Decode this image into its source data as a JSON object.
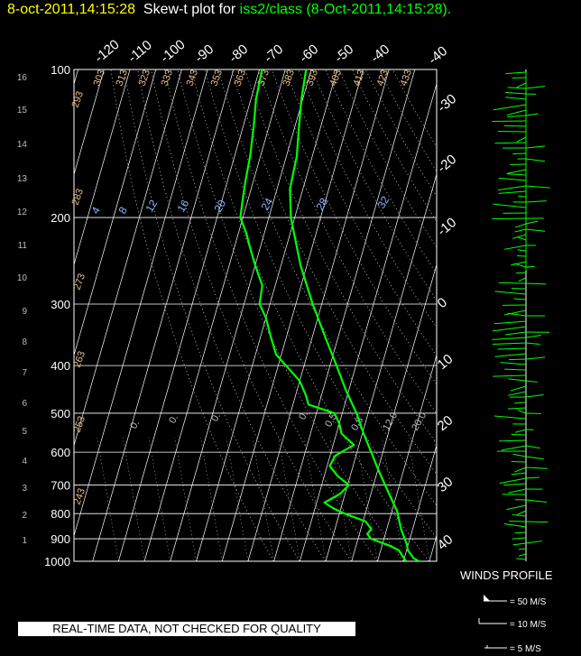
{
  "header": {
    "date_time": "8-oct-2011,14:15:28",
    "plot_label": "Skew-t plot for",
    "source": "iss2/class",
    "stamp": "(8-Oct-2011,14:15:28)."
  },
  "quality_note": "REAL-TIME DATA, NOT CHECKED FOR QUALITY",
  "winds": {
    "title": "WINDS PROFILE",
    "legend": [
      "= 50 M/S",
      "= 10 M/S",
      "= 5 M/S"
    ]
  },
  "colors": {
    "background": "#000000",
    "profile": "#00ff00",
    "grid": "#ffffff",
    "mixing_ratio": "#8ab4ff",
    "theta": "#e8c08a"
  },
  "chart_data": {
    "type": "line",
    "pressure_ticks": [
      100,
      200,
      300,
      400,
      500,
      600,
      700,
      800,
      900,
      1000
    ],
    "altitude_ticks": [
      1,
      2,
      3,
      4,
      5,
      6,
      7,
      8,
      9,
      10,
      11,
      12,
      13,
      14,
      15,
      16
    ],
    "temperature_ticks_top": [
      -120,
      -110,
      -100,
      -90,
      -80,
      -70,
      -60,
      -50,
      -40
    ],
    "temperature_ticks_right": [
      -30,
      -20,
      -10,
      0,
      10,
      20,
      30,
      40
    ],
    "theta_labels": [
      "243",
      "253",
      "263",
      "273",
      "283",
      "293",
      "303",
      "313",
      "323",
      "333",
      "343",
      "353",
      "363",
      "373",
      "383",
      "393",
      "403",
      "413",
      "423",
      "433"
    ],
    "mixing_ratio_labels": [
      "4",
      "8",
      "12",
      "16",
      "20",
      "24",
      "28",
      "32"
    ],
    "lower_labels": [
      "0.",
      "0.",
      "0.",
      "0.",
      "0.5",
      "0.8",
      "12.0",
      "20.0"
    ],
    "temperature_profile": [
      {
        "p": 1000,
        "t": 26.0
      },
      {
        "p": 985,
        "t": 23.5
      },
      {
        "p": 950,
        "t": 20.5
      },
      {
        "p": 925,
        "t": 19.5
      },
      {
        "p": 900,
        "t": 18.0
      },
      {
        "p": 860,
        "t": 15.5
      },
      {
        "p": 820,
        "t": 13.5
      },
      {
        "p": 790,
        "t": 12.0
      },
      {
        "p": 760,
        "t": 9.5
      },
      {
        "p": 700,
        "t": 4.5
      },
      {
        "p": 650,
        "t": 0.0
      },
      {
        "p": 600,
        "t": -4.5
      },
      {
        "p": 550,
        "t": -9.5
      },
      {
        "p": 500,
        "t": -14.5
      },
      {
        "p": 450,
        "t": -21.0
      },
      {
        "p": 400,
        "t": -27.5
      },
      {
        "p": 350,
        "t": -35.0
      },
      {
        "p": 300,
        "t": -43.5
      },
      {
        "p": 250,
        "t": -52.5
      },
      {
        "p": 200,
        "t": -61.5
      },
      {
        "p": 175,
        "t": -65.0
      },
      {
        "p": 150,
        "t": -66.0
      },
      {
        "p": 130,
        "t": -68.5
      },
      {
        "p": 115,
        "t": -70.5
      },
      {
        "p": 100,
        "t": -72.0
      }
    ],
    "dewpoint_profile": [
      {
        "p": 1000,
        "t": 21.0
      },
      {
        "p": 975,
        "t": 19.0
      },
      {
        "p": 950,
        "t": 17.0
      },
      {
        "p": 930,
        "t": 13.0
      },
      {
        "p": 900,
        "t": 5.0
      },
      {
        "p": 880,
        "t": 3.0
      },
      {
        "p": 860,
        "t": 4.0
      },
      {
        "p": 830,
        "t": 1.0
      },
      {
        "p": 800,
        "t": -8.0
      },
      {
        "p": 780,
        "t": -13.0
      },
      {
        "p": 760,
        "t": -17.0
      },
      {
        "p": 730,
        "t": -12.0
      },
      {
        "p": 700,
        "t": -9.5
      },
      {
        "p": 670,
        "t": -15.0
      },
      {
        "p": 640,
        "t": -19.0
      },
      {
        "p": 610,
        "t": -18.0
      },
      {
        "p": 580,
        "t": -12.0
      },
      {
        "p": 550,
        "t": -18.0
      },
      {
        "p": 525,
        "t": -20.0
      },
      {
        "p": 500,
        "t": -23.0
      },
      {
        "p": 480,
        "t": -34.0
      },
      {
        "p": 460,
        "t": -36.0
      },
      {
        "p": 430,
        "t": -40.0
      },
      {
        "p": 400,
        "t": -47.0
      },
      {
        "p": 380,
        "t": -52.0
      },
      {
        "p": 350,
        "t": -56.0
      },
      {
        "p": 320,
        "t": -60.0
      },
      {
        "p": 300,
        "t": -64.0
      },
      {
        "p": 275,
        "t": -65.0
      },
      {
        "p": 250,
        "t": -70.0
      },
      {
        "p": 230,
        "t": -74.0
      },
      {
        "p": 215,
        "t": -77.0
      },
      {
        "p": 200,
        "t": -81.0
      },
      {
        "p": 185,
        "t": -82.0
      },
      {
        "p": 170,
        "t": -83.0
      },
      {
        "p": 150,
        "t": -84.0
      },
      {
        "p": 130,
        "t": -86.0
      },
      {
        "p": 115,
        "t": -88.0
      },
      {
        "p": 100,
        "t": -89.0
      }
    ]
  }
}
